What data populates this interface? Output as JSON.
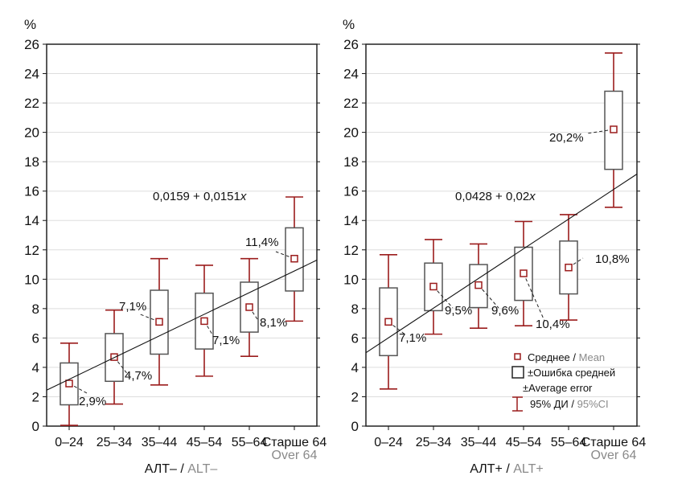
{
  "colors": {
    "mean": "#9b1c1c",
    "whisker": "#9b1c1c",
    "box": "#555555",
    "grid": "#dddddd",
    "line": "#111111",
    "secondary_text": "#8a8a8a"
  },
  "chart_data": [
    {
      "type": "box",
      "y_unit_label": "%",
      "ylim": [
        0,
        26
      ],
      "yticks": [
        "0",
        "2",
        "4",
        "6",
        "8",
        "10",
        "12",
        "14",
        "16",
        "18",
        "20",
        "22",
        "24",
        "26"
      ],
      "grid": true,
      "categories": [
        "0–24",
        "25–34",
        "35–44",
        "45–54",
        "55–64",
        "Старше 64"
      ],
      "category_secondary": [
        "",
        "",
        "",
        "",
        "",
        "Over 64"
      ],
      "xlabel": "АЛТ–",
      "xlabel_secondary": "ALT–",
      "xlabel_sep": " / ",
      "mean": [
        2.9,
        4.7,
        7.1,
        7.15,
        8.1,
        11.4
      ],
      "mean_labels": [
        "2,9%",
        "4,7%",
        "7,1%",
        "7,1%",
        "8,1%",
        "11,4%"
      ],
      "box_low": [
        1.45,
        3.05,
        4.9,
        5.25,
        6.4,
        9.2
      ],
      "box_high": [
        4.3,
        6.3,
        9.25,
        9.05,
        9.8,
        13.5
      ],
      "ci_low": [
        0.05,
        1.5,
        2.8,
        3.4,
        4.75,
        7.15
      ],
      "ci_high": [
        5.65,
        7.9,
        11.4,
        10.95,
        11.4,
        15.6
      ],
      "trend": {
        "equation": "0,0159 + 0,0151",
        "var": "x",
        "y_at_left": 2.45,
        "y_at_right": 11.3
      }
    },
    {
      "type": "box",
      "y_unit_label": "%",
      "ylim": [
        0,
        26
      ],
      "yticks": [
        "0",
        "2",
        "4",
        "6",
        "8",
        "10",
        "12",
        "14",
        "16",
        "18",
        "20",
        "22",
        "24",
        "26"
      ],
      "grid": true,
      "categories": [
        "0–24",
        "25–34",
        "35–44",
        "45–54",
        "55–64",
        "Старше 64"
      ],
      "category_secondary": [
        "",
        "",
        "",
        "",
        "",
        "Over 64"
      ],
      "xlabel": "АЛТ+",
      "xlabel_secondary": "ALT+",
      "xlabel_sep": " / ",
      "mean": [
        7.1,
        9.5,
        9.6,
        10.4,
        10.8,
        20.2
      ],
      "mean_labels": [
        "7,1%",
        "9,5%",
        "9,6%",
        "10,4%",
        "10,8%",
        "20,2%"
      ],
      "box_low": [
        4.8,
        7.86,
        8.07,
        8.56,
        9.0,
        17.48
      ],
      "box_high": [
        9.41,
        11.1,
        11.0,
        12.18,
        12.6,
        22.8
      ],
      "ci_low": [
        2.53,
        6.26,
        6.67,
        6.83,
        7.22,
        14.9
      ],
      "ci_high": [
        11.67,
        12.7,
        12.4,
        13.93,
        14.4,
        25.4
      ],
      "trend": {
        "equation": "0,0428 + 0,02",
        "var": "x",
        "y_at_left": 5.0,
        "y_at_right": 17.16
      },
      "legend": {
        "placement": "bottom-right",
        "mean": "Среднее",
        "mean_en": "Mean",
        "box": "±Ошибка средней",
        "box_en": "±Average error",
        "ci": "95% ДИ",
        "ci_en": "95%CI",
        "sep": " / "
      }
    }
  ]
}
